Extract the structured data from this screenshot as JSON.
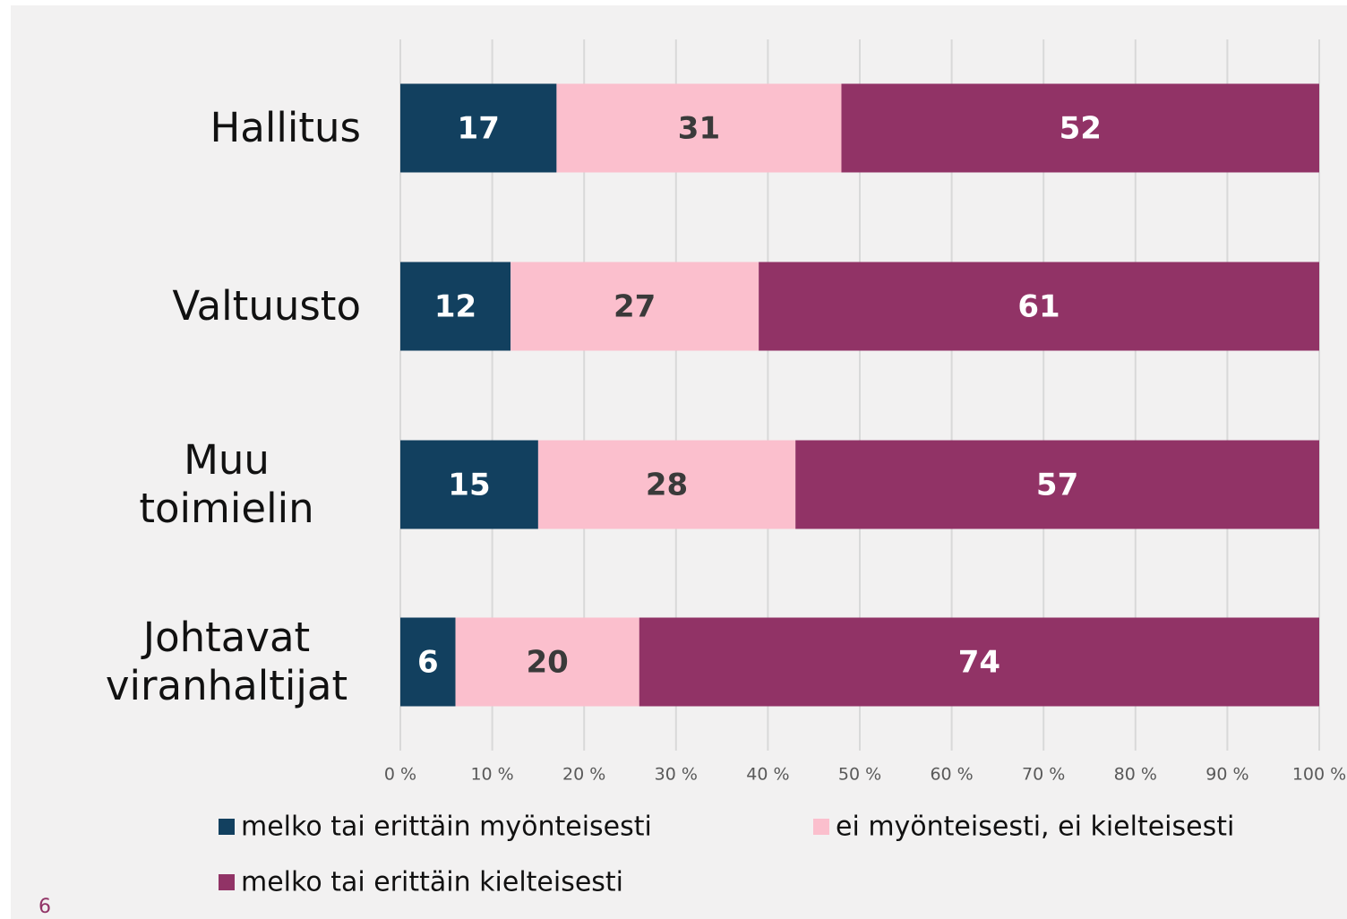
{
  "chart_data": {
    "type": "stacked_bar_horizontal",
    "categories": [
      "Hallitus",
      "Valtuusto",
      "Muu toimielin",
      "Johtavat viranhaltijat"
    ],
    "series": [
      {
        "name": "melko tai erittäin myönteisesti",
        "color": "#12405f",
        "values": [
          17,
          12,
          15,
          6
        ]
      },
      {
        "name": "ei myönteisesti, ei kielteisesti",
        "color": "#fbbfcd",
        "values": [
          31,
          27,
          28,
          20
        ]
      },
      {
        "name": "melko tai erittäin kielteisesti",
        "color": "#913366",
        "values": [
          52,
          61,
          57,
          74
        ]
      }
    ],
    "xlim": [
      0,
      100
    ],
    "xticks": [
      {
        "value": 0,
        "label": "0 %"
      },
      {
        "value": 10,
        "label": "10 %"
      },
      {
        "value": 20,
        "label": "20 %"
      },
      {
        "value": 30,
        "label": "30 %"
      },
      {
        "value": 40,
        "label": "40 %"
      },
      {
        "value": 50,
        "label": "50 %"
      },
      {
        "value": 60,
        "label": "60 %"
      },
      {
        "value": 70,
        "label": "70 %"
      },
      {
        "value": 80,
        "label": "80 %"
      },
      {
        "value": 90,
        "label": "90 %"
      },
      {
        "value": 100,
        "label": "100 %"
      }
    ],
    "grid": true
  },
  "page_number": "6"
}
